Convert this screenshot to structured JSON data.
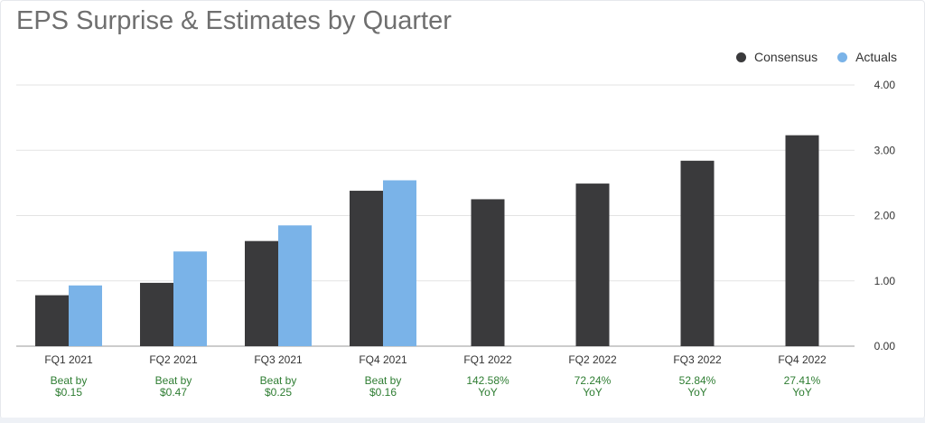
{
  "title": "EPS Surprise & Estimates by Quarter",
  "legend": [
    {
      "label": "Consensus",
      "color": "#3a3a3c"
    },
    {
      "label": "Actuals",
      "color": "#7ab3e8"
    }
  ],
  "colors": {
    "consensus": "#3a3a3c",
    "actuals": "#7ab3e8",
    "note": "#2e7d32"
  },
  "chart_data": {
    "type": "bar",
    "categories": [
      "FQ1 2021",
      "FQ2 2021",
      "FQ3 2021",
      "FQ4 2021",
      "FQ1 2022",
      "FQ2 2022",
      "FQ3 2022",
      "FQ4 2022"
    ],
    "series": [
      {
        "name": "Consensus",
        "values": [
          0.78,
          0.97,
          1.61,
          2.38,
          2.25,
          2.49,
          2.84,
          3.23
        ]
      },
      {
        "name": "Actuals",
        "values": [
          0.93,
          1.45,
          1.85,
          2.54,
          null,
          null,
          null,
          null
        ]
      }
    ],
    "notes": [
      [
        "Beat by",
        "$0.15"
      ],
      [
        "Beat by",
        "$0.47"
      ],
      [
        "Beat by",
        "$0.25"
      ],
      [
        "Beat by",
        "$0.16"
      ],
      [
        "142.58%",
        "YoY"
      ],
      [
        "72.24%",
        "YoY"
      ],
      [
        "52.84%",
        "YoY"
      ],
      [
        "27.41%",
        "YoY"
      ]
    ],
    "y_ticks": [
      "0.00",
      "1.00",
      "2.00",
      "3.00",
      "4.00"
    ],
    "ylim": [
      0,
      4
    ],
    "grid": true,
    "legend_position": "top-right",
    "y_axis_position": "right"
  }
}
